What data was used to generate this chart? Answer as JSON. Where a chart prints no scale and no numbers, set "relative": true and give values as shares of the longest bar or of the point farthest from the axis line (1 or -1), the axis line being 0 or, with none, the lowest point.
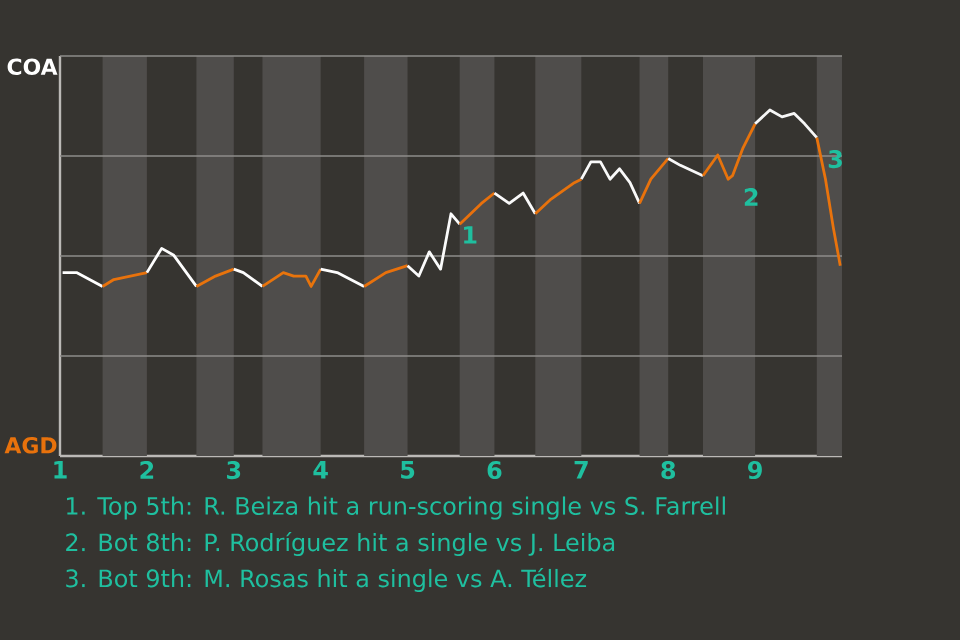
{
  "chart_data": {
    "type": "line",
    "relative": true,
    "grid": "y",
    "line_style": "solid",
    "marker": "none",
    "xlim": [
      1,
      10
    ],
    "xticks": [
      1,
      2,
      3,
      4,
      5,
      6,
      7,
      8,
      9
    ],
    "bands": [
      {
        "axis": "x",
        "from": 1.49,
        "to": 2,
        "color": "#4f4d4b"
      },
      {
        "axis": "x",
        "from": 2.57,
        "to": 3,
        "color": "#4f4d4b"
      },
      {
        "axis": "x",
        "from": 3.33,
        "to": 4,
        "color": "#4f4d4b"
      },
      {
        "axis": "x",
        "from": 4.5,
        "to": 5,
        "color": "#4f4d4b"
      },
      {
        "axis": "x",
        "from": 5.6,
        "to": 6,
        "color": "#4f4d4b"
      },
      {
        "axis": "x",
        "from": 6.47,
        "to": 7,
        "color": "#4f4d4b"
      },
      {
        "axis": "x",
        "from": 7.67,
        "to": 8,
        "color": "#4f4d4b"
      },
      {
        "axis": "x",
        "from": 8.4,
        "to": 9,
        "color": "#4f4d4b"
      },
      {
        "axis": "x",
        "from": 9.71,
        "to": 10,
        "color": "#4f4d4b"
      }
    ],
    "series": [
      {
        "name": "COA",
        "color": "#ffffff",
        "x": [
          1.03,
          1.19,
          1.49
        ],
        "values": [
          0.53,
          0.53,
          0.49
        ]
      },
      {
        "name": "AGD",
        "color": "#e8720c",
        "x": [
          1.49,
          1.62,
          2.0
        ],
        "values": [
          0.49,
          0.51,
          0.53
        ]
      },
      {
        "color": "#fefefe",
        "x": [
          2.0,
          2.17,
          2.31,
          2.57
        ],
        "values": [
          0.53,
          0.6,
          0.58,
          0.49
        ]
      },
      {
        "color": "#e8730c",
        "x": [
          2.57,
          2.79,
          3.0
        ],
        "values": [
          0.49,
          0.52,
          0.54
        ]
      },
      {
        "color": "#fdfdfd",
        "x": [
          3.0,
          3.11,
          3.33
        ],
        "values": [
          0.54,
          0.53,
          0.49
        ]
      },
      {
        "color": "#e8740c",
        "x": [
          3.33,
          3.57,
          3.69,
          3.83,
          3.89,
          4.0
        ],
        "values": [
          0.49,
          0.53,
          0.52,
          0.52,
          0.49,
          0.54
        ]
      },
      {
        "color": "#fcfcfc",
        "x": [
          4.0,
          4.19,
          4.5
        ],
        "values": [
          0.54,
          0.53,
          0.49
        ]
      },
      {
        "color": "#e8710c",
        "x": [
          4.5,
          4.75,
          5.0
        ],
        "values": [
          0.49,
          0.53,
          0.55
        ]
      },
      {
        "color": "#fbfbfb",
        "x": [
          5.0,
          5.13,
          5.25,
          5.38,
          5.5,
          5.6
        ],
        "values": [
          0.55,
          0.52,
          0.59,
          0.54,
          0.7,
          0.67
        ]
      },
      {
        "color": "#e8700c",
        "x": [
          5.6,
          5.85,
          6.0
        ],
        "values": [
          0.67,
          0.73,
          0.76
        ]
      },
      {
        "color": "#fafafa",
        "x": [
          6.0,
          6.17,
          6.33,
          6.47
        ],
        "values": [
          0.76,
          0.73,
          0.76,
          0.7
        ]
      },
      {
        "color": "#e7720c",
        "x": [
          6.47,
          6.64,
          6.92,
          7.0
        ],
        "values": [
          0.7,
          0.74,
          0.79,
          0.8
        ]
      },
      {
        "color": "#f9f9f9",
        "x": [
          7.0,
          7.11,
          7.22,
          7.33,
          7.44,
          7.56,
          7.67
        ],
        "values": [
          0.8,
          0.85,
          0.85,
          0.8,
          0.83,
          0.79,
          0.73
        ]
      },
      {
        "color": "#e9720c",
        "x": [
          7.67,
          7.8,
          8.0
        ],
        "values": [
          0.73,
          0.8,
          0.86
        ]
      },
      {
        "color": "#f8f8f8",
        "x": [
          8.0,
          8.14,
          8.4
        ],
        "values": [
          0.86,
          0.84,
          0.81
        ]
      },
      {
        "color": "#e7730c",
        "x": [
          8.4,
          8.57,
          8.69,
          8.74,
          8.86,
          9.0
        ],
        "values": [
          0.81,
          0.87,
          0.8,
          0.81,
          0.89,
          0.96
        ]
      },
      {
        "color": "#f7f7f7",
        "x": [
          9.0,
          9.17,
          9.31,
          9.45,
          9.57,
          9.71
        ],
        "values": [
          0.96,
          1,
          0.98,
          0.99,
          0.96,
          0.92
        ]
      },
      {
        "color": "#e9730c",
        "x": [
          9.71,
          9.81,
          9.9,
          9.98
        ],
        "values": [
          0.92,
          0.8,
          0.66,
          0.55
        ]
      }
    ],
    "annotations": [
      {
        "text": "1",
        "x": 5.5,
        "y": 0.7
      },
      {
        "text": "2",
        "x": 8.74,
        "y": 0.81
      },
      {
        "text": "3",
        "x": 9.71,
        "y": 0.92
      },
      "1. Top 5th: R. Beiza hit a run-scoring single vs S. Farrell",
      "2. Bot 8th: P. Rodríguez hit a single vs J. Leiba",
      "3. Bot 9th: M. Rosas hit a single vs A. Téllez"
    ]
  }
}
